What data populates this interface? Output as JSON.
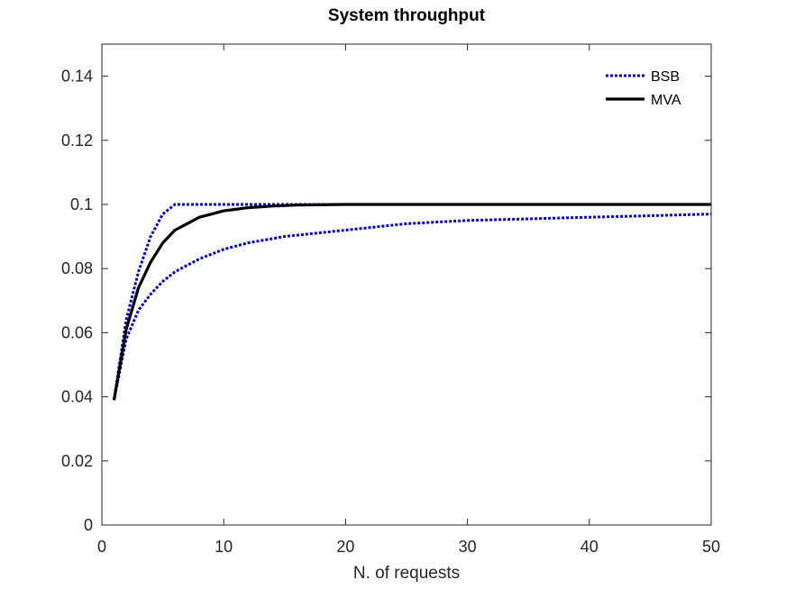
{
  "chart_data": {
    "type": "line",
    "title": "System throughput",
    "xlabel": "N. of requests",
    "ylabel": "",
    "xlim": [
      0,
      50
    ],
    "ylim": [
      0,
      0.15
    ],
    "xticks": [
      0,
      10,
      20,
      30,
      40,
      50
    ],
    "xtick_labels": [
      "0",
      "10",
      "20",
      "30",
      "40",
      "50"
    ],
    "yticks": [
      0,
      0.02,
      0.04,
      0.06,
      0.08,
      0.1,
      0.12,
      0.14
    ],
    "ytick_labels": [
      "0",
      "0.02",
      "0.04",
      "0.06",
      "0.08",
      "0.1",
      "0.12",
      "0.14"
    ],
    "grid": false,
    "legend_position": "top-right",
    "series": [
      {
        "name": "BSB",
        "style": "dotted",
        "color": "#0000cc",
        "x": [
          1,
          2,
          3,
          4,
          5,
          6,
          7,
          8,
          9,
          10,
          15,
          20,
          25,
          30,
          35,
          40,
          45,
          50
        ],
        "y": [
          0.039,
          0.064,
          0.079,
          0.09,
          0.097,
          0.1,
          0.1,
          0.1,
          0.1,
          0.1,
          0.1,
          0.1,
          0.1,
          0.1,
          0.1,
          0.1,
          0.1,
          0.1
        ]
      },
      {
        "name": "",
        "style": "dotted",
        "color": "#0000cc",
        "x": [
          1,
          2,
          3,
          4,
          5,
          6,
          7,
          8,
          10,
          12,
          15,
          20,
          25,
          30,
          35,
          40,
          45,
          50
        ],
        "y": [
          0.039,
          0.058,
          0.067,
          0.072,
          0.076,
          0.079,
          0.081,
          0.083,
          0.086,
          0.088,
          0.09,
          0.092,
          0.094,
          0.095,
          0.0955,
          0.096,
          0.0965,
          0.097
        ]
      },
      {
        "name": "MVA",
        "style": "solid",
        "color": "#000000",
        "x": [
          1,
          2,
          3,
          4,
          5,
          6,
          7,
          8,
          9,
          10,
          12,
          14,
          16,
          18,
          20,
          25,
          30,
          40,
          50
        ],
        "y": [
          0.039,
          0.061,
          0.074,
          0.082,
          0.088,
          0.092,
          0.094,
          0.096,
          0.097,
          0.098,
          0.099,
          0.0995,
          0.0998,
          0.0999,
          0.1,
          0.1,
          0.1,
          0.1,
          0.1
        ]
      }
    ]
  }
}
